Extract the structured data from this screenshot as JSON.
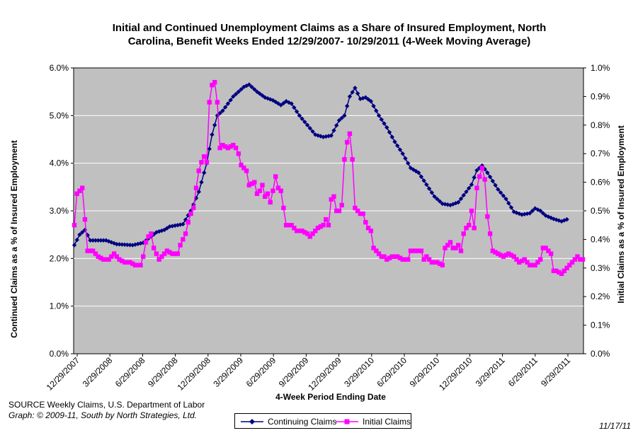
{
  "chart_data": {
    "type": "line",
    "title_lines": [
      "Initial and Continued Unemployment Claims as a Share of Insured Employment, North",
      "Carolina, Benefit Weeks Ended 12/29/2007- 10/29/2011 (4-Week Moving Average)"
    ],
    "xlabel": "4-Week Period Ending Date",
    "ylabel_left": "Continued Claims as a % of Insured Employment",
    "ylabel_right": "Initial Claims as a % of Insured Employment",
    "y_left_ticks": [
      "0.0%",
      "1.0%",
      "2.0%",
      "3.0%",
      "4.0%",
      "5.0%",
      "6.0%"
    ],
    "y_right_ticks": [
      "0.0%",
      "0.1%",
      "0.2%",
      "0.3%",
      "0.4%",
      "0.5%",
      "0.6%",
      "0.7%",
      "0.8%",
      "0.9%",
      "1.0%"
    ],
    "y_left_range": [
      0,
      6
    ],
    "y_right_range": [
      0,
      1
    ],
    "x_ticks": [
      "12/29/2007",
      "3/29/2008",
      "6/29/2008",
      "9/29/2008",
      "12/29/2008",
      "3/29/2009",
      "6/29/2009",
      "9/29/2009",
      "12/29/2009",
      "3/29/2010",
      "6/29/2010",
      "9/29/2010",
      "12/29/2010",
      "3/29/2011",
      "6/29/2011",
      "9/29/2011"
    ],
    "grid": "horizontal",
    "plot_background": "#c0c0c0",
    "legend_position": "bottom",
    "series": [
      {
        "name": "Continuing Claims",
        "axis": "left",
        "color": "#000080",
        "marker": "diamond",
        "anchors": [
          [
            0,
            2.28
          ],
          [
            2,
            2.5
          ],
          [
            4,
            2.6
          ],
          [
            6,
            2.38
          ],
          [
            12,
            2.38
          ],
          [
            16,
            2.3
          ],
          [
            22,
            2.28
          ],
          [
            26,
            2.33
          ],
          [
            28,
            2.42
          ],
          [
            31,
            2.55
          ],
          [
            34,
            2.6
          ],
          [
            36,
            2.67
          ],
          [
            41,
            2.72
          ],
          [
            44,
            3.0
          ],
          [
            47,
            3.4
          ],
          [
            50,
            4.0
          ],
          [
            52,
            4.6
          ],
          [
            54,
            5.0
          ],
          [
            56,
            5.1
          ],
          [
            60,
            5.4
          ],
          [
            64,
            5.6
          ],
          [
            66,
            5.65
          ],
          [
            69,
            5.5
          ],
          [
            72,
            5.38
          ],
          [
            75,
            5.32
          ],
          [
            78,
            5.22
          ],
          [
            80,
            5.3
          ],
          [
            82,
            5.25
          ],
          [
            85,
            5.0
          ],
          [
            88,
            4.8
          ],
          [
            91,
            4.6
          ],
          [
            94,
            4.55
          ],
          [
            97,
            4.58
          ],
          [
            100,
            4.9
          ],
          [
            102,
            5.0
          ],
          [
            104,
            5.4
          ],
          [
            106,
            5.58
          ],
          [
            108,
            5.35
          ],
          [
            110,
            5.38
          ],
          [
            112,
            5.3
          ],
          [
            115,
            5.0
          ],
          [
            118,
            4.75
          ],
          [
            121,
            4.45
          ],
          [
            124,
            4.2
          ],
          [
            127,
            3.9
          ],
          [
            130,
            3.8
          ],
          [
            133,
            3.55
          ],
          [
            136,
            3.3
          ],
          [
            139,
            3.15
          ],
          [
            142,
            3.12
          ],
          [
            145,
            3.18
          ],
          [
            148,
            3.4
          ],
          [
            150,
            3.55
          ],
          [
            152,
            3.85
          ],
          [
            154,
            3.95
          ],
          [
            156,
            3.8
          ],
          [
            160,
            3.45
          ],
          [
            163,
            3.25
          ],
          [
            166,
            2.98
          ],
          [
            169,
            2.92
          ],
          [
            172,
            2.95
          ],
          [
            174,
            3.05
          ],
          [
            176,
            3.0
          ],
          [
            178,
            2.9
          ],
          [
            181,
            2.83
          ],
          [
            184,
            2.78
          ],
          [
            186,
            2.82
          ]
        ]
      },
      {
        "name": "Initial Claims",
        "axis": "right",
        "color": "#ff00ff",
        "marker": "square",
        "anchors": [
          [
            0,
            0.45
          ],
          [
            1,
            0.56
          ],
          [
            2,
            0.57
          ],
          [
            3,
            0.58
          ],
          [
            4,
            0.47
          ],
          [
            5,
            0.36
          ],
          [
            7,
            0.36
          ],
          [
            9,
            0.34
          ],
          [
            11,
            0.33
          ],
          [
            13,
            0.33
          ],
          [
            15,
            0.35
          ],
          [
            17,
            0.33
          ],
          [
            19,
            0.32
          ],
          [
            21,
            0.32
          ],
          [
            23,
            0.31
          ],
          [
            25,
            0.31
          ],
          [
            26,
            0.34
          ],
          [
            27,
            0.39
          ],
          [
            28,
            0.41
          ],
          [
            29,
            0.42
          ],
          [
            30,
            0.37
          ],
          [
            31,
            0.35
          ],
          [
            32,
            0.33
          ],
          [
            33,
            0.34
          ],
          [
            35,
            0.36
          ],
          [
            37,
            0.35
          ],
          [
            39,
            0.35
          ],
          [
            40,
            0.38
          ],
          [
            41,
            0.4
          ],
          [
            42,
            0.42
          ],
          [
            43,
            0.46
          ],
          [
            44,
            0.49
          ],
          [
            45,
            0.51
          ],
          [
            46,
            0.58
          ],
          [
            47,
            0.64
          ],
          [
            48,
            0.67
          ],
          [
            49,
            0.69
          ],
          [
            50,
            0.67
          ],
          [
            51,
            0.88
          ],
          [
            52,
            0.94
          ],
          [
            53,
            0.95
          ],
          [
            54,
            0.88
          ],
          [
            55,
            0.72
          ],
          [
            56,
            0.73
          ],
          [
            58,
            0.72
          ],
          [
            60,
            0.73
          ],
          [
            61,
            0.72
          ],
          [
            62,
            0.7
          ],
          [
            63,
            0.66
          ],
          [
            64,
            0.65
          ],
          [
            65,
            0.64
          ],
          [
            66,
            0.59
          ],
          [
            68,
            0.6
          ],
          [
            69,
            0.56
          ],
          [
            70,
            0.57
          ],
          [
            71,
            0.59
          ],
          [
            72,
            0.55
          ],
          [
            73,
            0.56
          ],
          [
            74,
            0.53
          ],
          [
            75,
            0.57
          ],
          [
            76,
            0.62
          ],
          [
            77,
            0.58
          ],
          [
            78,
            0.57
          ],
          [
            79,
            0.51
          ],
          [
            80,
            0.45
          ],
          [
            82,
            0.45
          ],
          [
            84,
            0.43
          ],
          [
            86,
            0.43
          ],
          [
            88,
            0.42
          ],
          [
            89,
            0.41
          ],
          [
            90,
            0.42
          ],
          [
            92,
            0.44
          ],
          [
            94,
            0.45
          ],
          [
            95,
            0.47
          ],
          [
            96,
            0.45
          ],
          [
            97,
            0.54
          ],
          [
            98,
            0.55
          ],
          [
            99,
            0.5
          ],
          [
            100,
            0.5
          ],
          [
            101,
            0.52
          ],
          [
            102,
            0.68
          ],
          [
            103,
            0.74
          ],
          [
            104,
            0.77
          ],
          [
            105,
            0.68
          ],
          [
            106,
            0.51
          ],
          [
            107,
            0.5
          ],
          [
            108,
            0.49
          ],
          [
            109,
            0.49
          ],
          [
            110,
            0.46
          ],
          [
            111,
            0.44
          ],
          [
            112,
            0.43
          ],
          [
            113,
            0.37
          ],
          [
            114,
            0.36
          ],
          [
            115,
            0.35
          ],
          [
            116,
            0.34
          ],
          [
            117,
            0.34
          ],
          [
            118,
            0.33
          ],
          [
            120,
            0.34
          ],
          [
            122,
            0.34
          ],
          [
            124,
            0.33
          ],
          [
            126,
            0.33
          ],
          [
            127,
            0.36
          ],
          [
            129,
            0.36
          ],
          [
            131,
            0.36
          ],
          [
            132,
            0.33
          ],
          [
            133,
            0.34
          ],
          [
            135,
            0.32
          ],
          [
            137,
            0.32
          ],
          [
            139,
            0.31
          ],
          [
            140,
            0.37
          ],
          [
            141,
            0.38
          ],
          [
            142,
            0.39
          ],
          [
            143,
            0.37
          ],
          [
            144,
            0.37
          ],
          [
            145,
            0.38
          ],
          [
            146,
            0.36
          ],
          [
            147,
            0.42
          ],
          [
            148,
            0.44
          ],
          [
            149,
            0.45
          ],
          [
            150,
            0.5
          ],
          [
            151,
            0.44
          ],
          [
            152,
            0.58
          ],
          [
            153,
            0.62
          ],
          [
            154,
            0.65
          ],
          [
            155,
            0.61
          ],
          [
            156,
            0.48
          ],
          [
            157,
            0.42
          ],
          [
            158,
            0.36
          ],
          [
            160,
            0.35
          ],
          [
            162,
            0.34
          ],
          [
            164,
            0.35
          ],
          [
            166,
            0.34
          ],
          [
            168,
            0.32
          ],
          [
            170,
            0.33
          ],
          [
            172,
            0.31
          ],
          [
            174,
            0.31
          ],
          [
            176,
            0.33
          ],
          [
            177,
            0.37
          ],
          [
            178,
            0.37
          ],
          [
            179,
            0.36
          ],
          [
            180,
            0.35
          ],
          [
            181,
            0.29
          ],
          [
            182,
            0.29
          ],
          [
            184,
            0.28
          ],
          [
            186,
            0.3
          ],
          [
            188,
            0.32
          ],
          [
            190,
            0.34
          ],
          [
            191,
            0.33
          ],
          [
            192,
            0.33
          ]
        ]
      }
    ]
  },
  "source": {
    "line1": "SOURCE  Weekly Claims, U.S. Department of Labor",
    "line2": "Graph: © 2009-11, South by North Strategies, Ltd."
  },
  "date_stamp": "11/17/11",
  "legend": {
    "continuing": "Continuing Claims",
    "initial": "Initial Claims"
  }
}
